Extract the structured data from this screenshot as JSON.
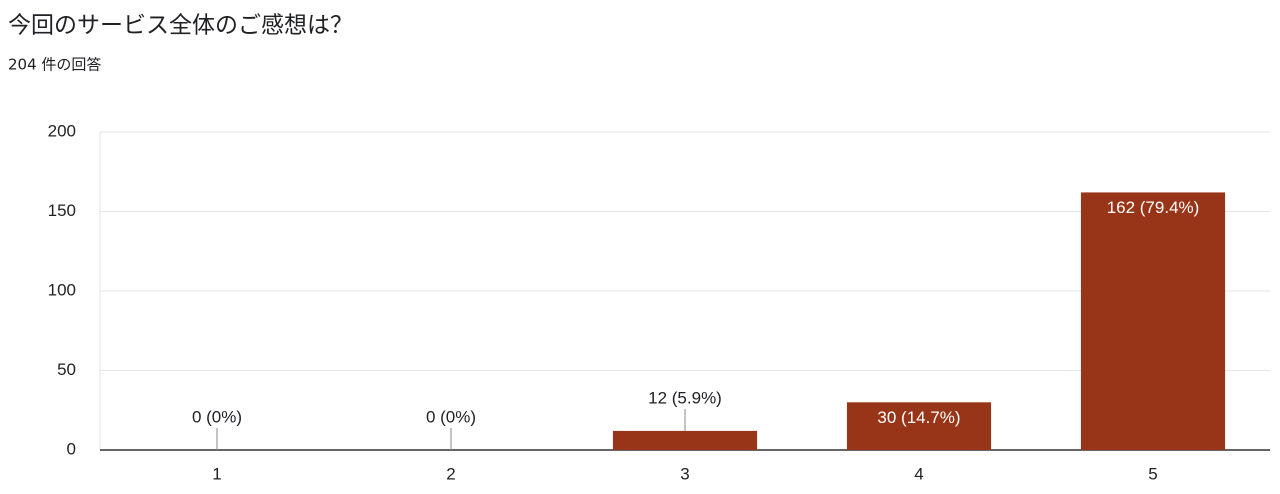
{
  "chart_data": {
    "type": "bar",
    "title": "今回のサービス全体のご感想は？",
    "subtitle": "204 件の回答",
    "categories": [
      "1",
      "2",
      "3",
      "4",
      "5"
    ],
    "values": [
      0,
      0,
      12,
      30,
      162
    ],
    "value_labels": [
      "0 (0%)",
      "0 (0%)",
      "12 (5.9%)",
      "30 (14.7%)",
      "162 (79.4%)"
    ],
    "color": "#983518",
    "ylim": [
      0,
      200
    ],
    "yticks": [
      0,
      50,
      100,
      150,
      200
    ],
    "grid": true
  }
}
